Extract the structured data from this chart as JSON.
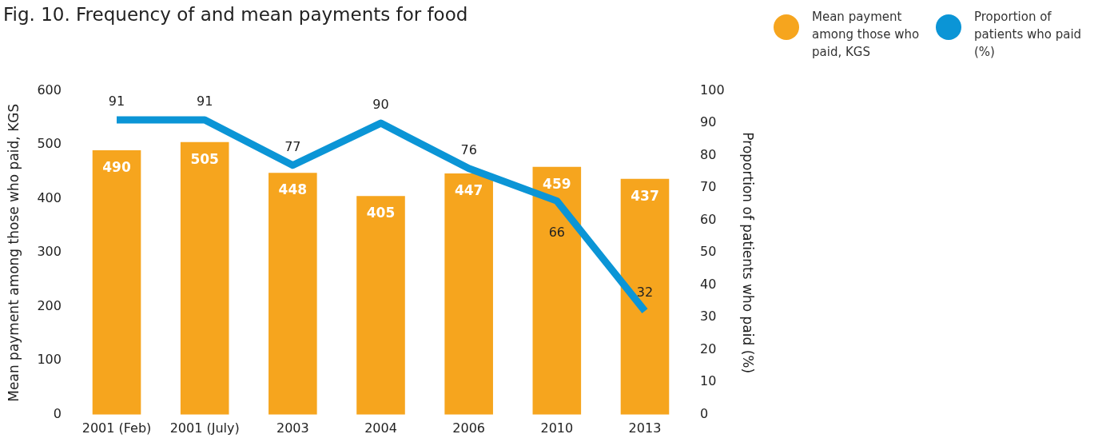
{
  "chart_data": {
    "type": "bar",
    "title": "Fig. 10. Frequency of and mean payments for food",
    "categories": [
      "2001 (Feb)",
      "2001 (July)",
      "2003",
      "2004",
      "2006",
      "2010",
      "2013"
    ],
    "series": [
      {
        "name": "Mean payment among those who paid, KGS",
        "color": "#f6a51e",
        "values": [
          490,
          505,
          448,
          405,
          447,
          459,
          437
        ]
      },
      {
        "name": "Proportion of patients who paid (%)",
        "type": "line",
        "axis": "y2",
        "color": "#0b95d6",
        "values": [
          91,
          91,
          77,
          90,
          76,
          66,
          32
        ]
      }
    ],
    "ylabel": "Mean payment among those who paid, KGS",
    "y2label": "Proportion of patients who paid (%)",
    "ylim": [
      0,
      600
    ],
    "yticks": [
      0,
      100,
      200,
      300,
      400,
      500,
      600
    ],
    "y2lim": [
      0,
      100
    ],
    "y2ticks": [
      0,
      10,
      20,
      30,
      40,
      50,
      60,
      70,
      80,
      90,
      100
    ],
    "data_labels": true,
    "grid": false,
    "legend": "top right",
    "marker": "none"
  }
}
